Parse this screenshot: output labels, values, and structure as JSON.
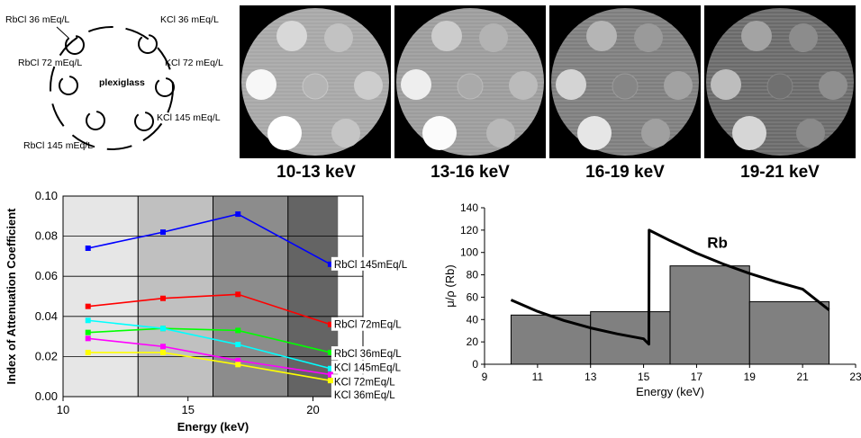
{
  "phantom_diagram": {
    "center_label": "plexiglass",
    "inserts": [
      {
        "label": "RbCl 36 mEq/L"
      },
      {
        "label": "KCl 36 mEq/L"
      },
      {
        "label": "RbCl 72 mEq/L"
      },
      {
        "label": "KCl 72 mEq/L"
      },
      {
        "label": "KCl 145 mEq/L"
      },
      {
        "label": "RbCl 145 mEq/L"
      }
    ]
  },
  "ct_images": [
    {
      "energy_label": "10-13 keV"
    },
    {
      "energy_label": "13-16 keV"
    },
    {
      "energy_label": "16-19 keV"
    },
    {
      "energy_label": "19-21 keV"
    }
  ],
  "chart_data": [
    {
      "type": "line",
      "title": "",
      "xlabel": "Energy (keV)",
      "ylabel": "Index of Attenuation Coefficient",
      "xlim": [
        10,
        22
      ],
      "ylim": [
        0,
        0.1
      ],
      "xticks": [
        "10",
        "15",
        "20"
      ],
      "yticks": [
        "0.00",
        "0.02",
        "0.04",
        "0.06",
        "0.08",
        "0.10"
      ],
      "grid": true,
      "energy_bands": [
        {
          "from": 10,
          "to": 13,
          "color": "#e6e6e6"
        },
        {
          "from": 13,
          "to": 16,
          "color": "#c0c0c0"
        },
        {
          "from": 16,
          "to": 19,
          "color": "#8c8c8c"
        },
        {
          "from": 19,
          "to": 21,
          "color": "#646464"
        }
      ],
      "x": [
        11,
        14,
        17,
        20.7
      ],
      "series": [
        {
          "name": "RbCl 145mEq/L",
          "color": "#0000ff",
          "values": [
            0.074,
            0.082,
            0.091,
            0.066
          ]
        },
        {
          "name": "RbCl 72mEq/L",
          "color": "#ff0000",
          "values": [
            0.045,
            0.049,
            0.051,
            0.036
          ]
        },
        {
          "name": "RbCl 36mEq/L",
          "color": "#00ff00",
          "values": [
            0.032,
            0.034,
            0.033,
            0.022
          ]
        },
        {
          "name": "KCl 145mEq/L",
          "color": "#00ffff",
          "values": [
            0.038,
            0.034,
            0.026,
            0.014
          ]
        },
        {
          "name": "KCl 72mEq/L",
          "color": "#ff00ff",
          "values": [
            0.029,
            0.025,
            0.018,
            0.011
          ]
        },
        {
          "name": "KCl 36mEq/L",
          "color": "#ffff00",
          "values": [
            0.022,
            0.022,
            0.016,
            0.008
          ]
        }
      ]
    },
    {
      "type": "bar",
      "title": "",
      "xlabel": "Energy (keV)",
      "ylabel": "μ/ρ (Rb)",
      "xlim": [
        9,
        23
      ],
      "ylim": [
        0,
        140
      ],
      "xticks": [
        "9",
        "11",
        "13",
        "15",
        "17",
        "19",
        "21",
        "23"
      ],
      "yticks": [
        "0",
        "20",
        "40",
        "60",
        "80",
        "100",
        "120",
        "140"
      ],
      "bar_color": "#808080",
      "bars": [
        {
          "from": 10,
          "to": 13,
          "value": 44
        },
        {
          "from": 13,
          "to": 16,
          "value": 47
        },
        {
          "from": 16,
          "to": 19,
          "value": 88
        },
        {
          "from": 19,
          "to": 22,
          "value": 56
        }
      ],
      "curve_label": "Rb",
      "curve": [
        [
          10,
          57.5
        ],
        [
          11,
          47.3
        ],
        [
          12,
          39.1
        ],
        [
          13,
          32.5
        ],
        [
          14,
          27.2
        ],
        [
          15,
          22.8
        ],
        [
          15.2,
          18
        ],
        [
          15.21,
          120
        ],
        [
          16,
          110.6
        ],
        [
          17,
          99.4
        ],
        [
          18,
          89.7
        ],
        [
          19,
          81.2
        ],
        [
          20,
          73.8
        ],
        [
          21,
          67.2
        ],
        [
          22,
          48.5
        ]
      ]
    }
  ]
}
